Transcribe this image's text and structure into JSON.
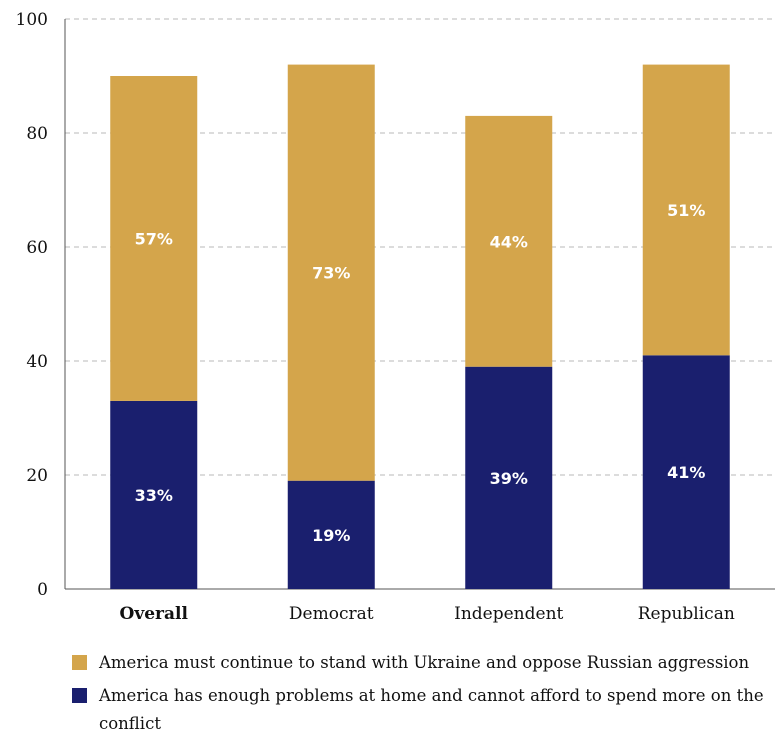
{
  "chart_data": {
    "type": "bar",
    "stacked": true,
    "categories": [
      "Overall",
      "Democrat",
      "Independent",
      "Republican"
    ],
    "bold_categories": [
      "Overall"
    ],
    "series": [
      {
        "name": "America has enough problems at home and cannot afford to spend more on the conflict",
        "color": "#1a1f6e",
        "values": [
          33,
          19,
          39,
          41
        ],
        "labels": [
          "33%",
          "19%",
          "39%",
          "41%"
        ]
      },
      {
        "name": "America must continue to stand with Ukraine and oppose Russian aggression",
        "color": "#d4a54b",
        "values": [
          57,
          73,
          44,
          51
        ],
        "labels": [
          "57%",
          "73%",
          "44%",
          "51%"
        ]
      }
    ],
    "ylim": [
      0,
      100
    ],
    "yticks": [
      0,
      20,
      40,
      60,
      80,
      100
    ],
    "grid": true,
    "legend_position": "bottom"
  },
  "legend": [
    {
      "label": "America must continue to stand with Ukraine and oppose Russian aggression",
      "color": "#d4a54b"
    },
    {
      "label": "America has enough problems at home and cannot afford to spend more on the conflict",
      "color": "#1a1f6e"
    }
  ]
}
